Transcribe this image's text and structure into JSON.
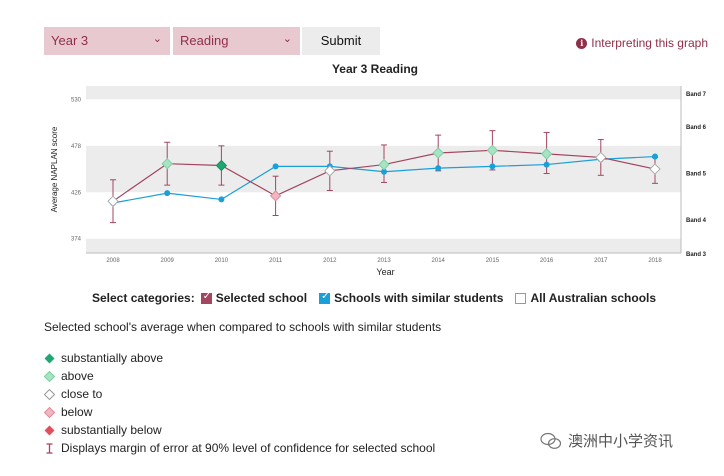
{
  "controls": {
    "year_select": "Year 3",
    "domain_select": "Reading",
    "submit_label": "Submit",
    "interpreting_link": "Interpreting this graph"
  },
  "chart_data": {
    "type": "line",
    "title": "Year 3 Reading",
    "xlabel": "Year",
    "ylabel": "Average NAPLAN score",
    "x": [
      "2008",
      "2009",
      "2010",
      "2011",
      "2012",
      "2013",
      "2014",
      "2015",
      "2016",
      "2017",
      "2018"
    ],
    "y_ticks": [
      374,
      426,
      478,
      530
    ],
    "ylim": [
      358,
      545
    ],
    "bands": [
      {
        "label": "Band 7",
        "value": 536
      },
      {
        "label": "Band 6",
        "value": 499
      },
      {
        "label": "Band 5",
        "value": 447
      },
      {
        "label": "Band 4",
        "value": 395
      },
      {
        "label": "Band 3",
        "value": 357
      }
    ],
    "series": [
      {
        "name": "Selected school",
        "color": "#a3465f",
        "values": [
          416,
          458,
          456,
          422,
          450,
          457,
          470,
          473,
          469,
          465,
          452
        ],
        "error": [
          [
            392,
            440
          ],
          [
            434,
            482
          ],
          [
            434,
            478
          ],
          [
            400,
            444
          ],
          [
            428,
            472
          ],
          [
            437,
            479
          ],
          [
            450,
            490
          ],
          [
            451,
            495
          ],
          [
            447,
            493
          ],
          [
            445,
            485
          ],
          [
            436,
            465
          ]
        ],
        "comparison": [
          "close to",
          "above",
          "substantially above",
          "below",
          "close to",
          "above",
          "above",
          "above",
          "above",
          "close to",
          "close to"
        ]
      },
      {
        "name": "Schools with similar students",
        "color": "#1a9fd8",
        "values": [
          414,
          425,
          418,
          455,
          455,
          449,
          453,
          455,
          457,
          463,
          466
        ]
      }
    ],
    "grid": "horizontal bands",
    "legend": "bottom"
  },
  "categories": {
    "label": "Select categories:",
    "items": [
      {
        "label": "Selected school",
        "checked": true
      },
      {
        "label": "Schools with similar students",
        "checked": true
      },
      {
        "label": "All Australian schools",
        "checked": false
      }
    ]
  },
  "legend": {
    "subtitle": "Selected school's average when compared to schools with similar students",
    "items": [
      {
        "label": "substantially above",
        "color": "#1fa672"
      },
      {
        "label": "above",
        "color": "#a6e4c3"
      },
      {
        "label": "close to",
        "color": "#ffffff"
      },
      {
        "label": "below",
        "color": "#f2b6bf"
      },
      {
        "label": "substantially below",
        "color": "#e0505b"
      },
      {
        "label": "Displays margin of error at 90% level of confidence for selected school",
        "color": "#a3465f"
      }
    ]
  },
  "watermark": "澳洲中小学资讯"
}
